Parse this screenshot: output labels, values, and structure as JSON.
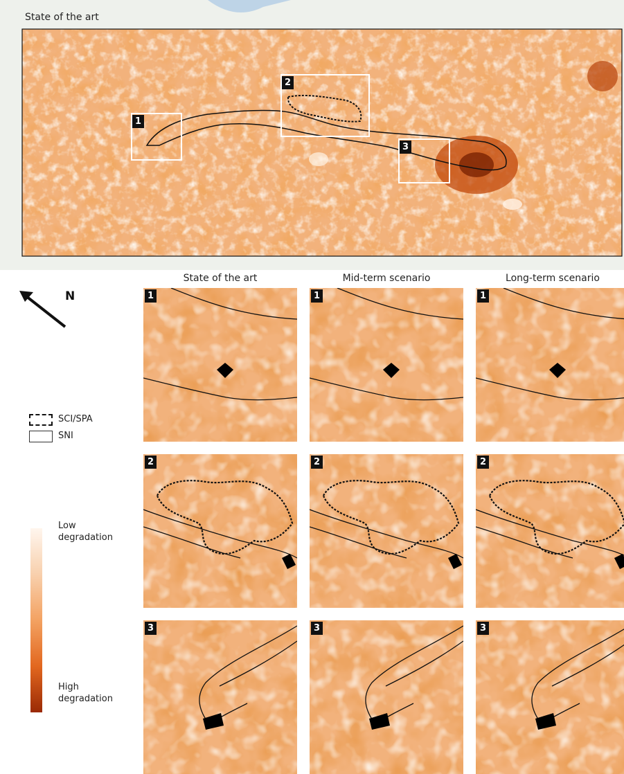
{
  "main_map": {
    "title": "State of the art",
    "zoom_box_labels": [
      "1",
      "2",
      "3"
    ]
  },
  "columns": [
    "State of the art",
    "Mid-term scenario",
    "Long-term scenario"
  ],
  "rows": [
    "1",
    "2",
    "3"
  ],
  "north_arrow": {
    "label": "N"
  },
  "legend": {
    "sci_spa": "SCI/SPA",
    "sni": "SNI",
    "low": [
      "Low",
      "degradation"
    ],
    "high": [
      "High",
      "degradation"
    ]
  },
  "colors": {
    "low": "#fff6ee",
    "mid": "#f3a262",
    "high": "#9a2a05",
    "base": "#f2b27c",
    "border": "#111111",
    "frame": "#ffffff"
  }
}
